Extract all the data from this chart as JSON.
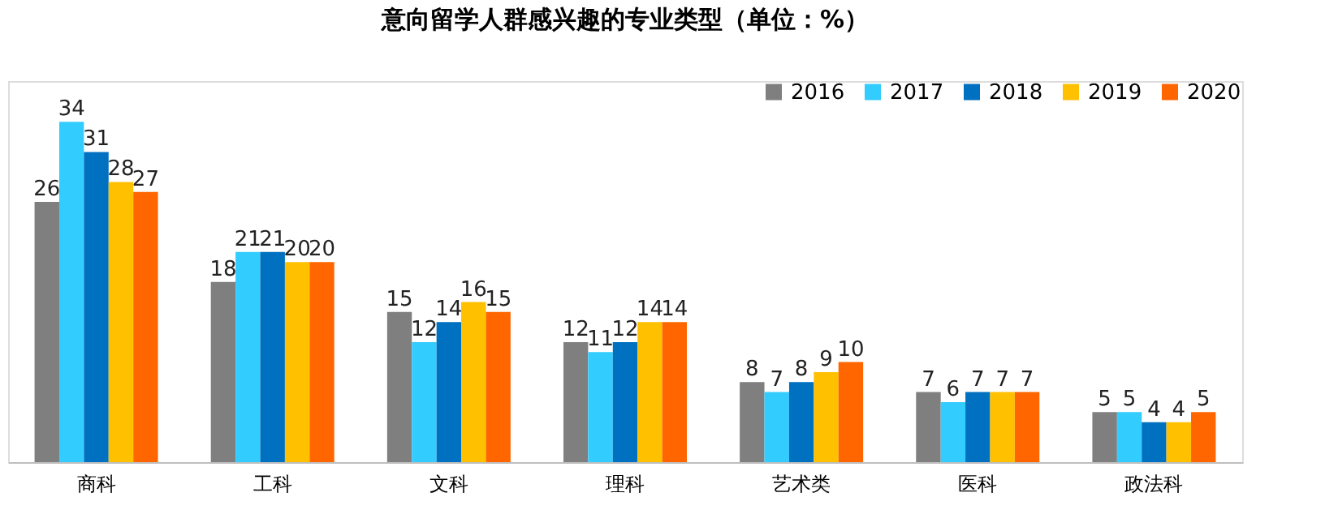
{
  "chart_data": {
    "type": "bar",
    "title": "意向留学人群感兴趣的专业类型（单位：%）",
    "categories": [
      "商科",
      "工科",
      "文科",
      "理科",
      "艺术类",
      "医科",
      "政法科"
    ],
    "series": [
      {
        "name": "2016",
        "color": "#7f7f7f",
        "values": [
          26,
          18,
          15,
          12,
          8,
          7,
          5
        ]
      },
      {
        "name": "2017",
        "color": "#33ccff",
        "values": [
          34,
          21,
          12,
          11,
          7,
          6,
          5
        ]
      },
      {
        "name": "2018",
        "color": "#0070c0",
        "values": [
          31,
          21,
          14,
          12,
          8,
          7,
          4
        ]
      },
      {
        "name": "2019",
        "color": "#ffc000",
        "values": [
          28,
          20,
          16,
          14,
          9,
          7,
          4
        ]
      },
      {
        "name": "2020",
        "color": "#ff6600",
        "values": [
          27,
          20,
          15,
          14,
          10,
          7,
          5
        ]
      }
    ],
    "data_labels": true,
    "legend": "top right",
    "grid": false
  }
}
